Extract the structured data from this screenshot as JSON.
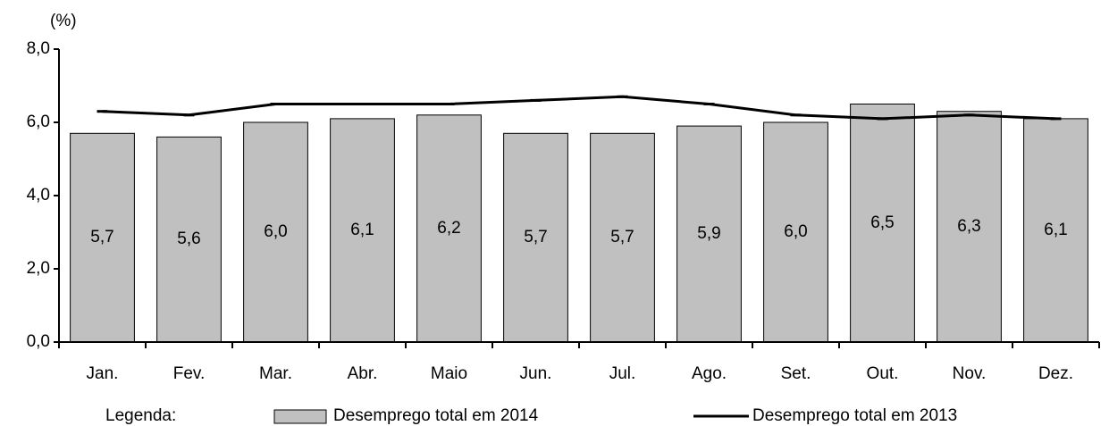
{
  "chart_data": {
    "type": "bar",
    "unit_label": "(%)",
    "legend_title": "Legenda:",
    "categories": [
      "Jan.",
      "Fev.",
      "Mar.",
      "Abr.",
      "Maio",
      "Jun.",
      "Jul.",
      "Ago.",
      "Set.",
      "Out.",
      "Nov.",
      "Dez."
    ],
    "series": [
      {
        "name": "Desemprego total em 2014",
        "type": "bar",
        "color": "#c0c0c0",
        "values": [
          5.7,
          5.6,
          6.0,
          6.1,
          6.2,
          5.7,
          5.7,
          5.9,
          6.0,
          6.5,
          6.3,
          6.1
        ],
        "value_labels": [
          "5,7",
          "5,6",
          "6,0",
          "6,1",
          "6,2",
          "5,7",
          "5,7",
          "5,9",
          "6,0",
          "6,5",
          "6,3",
          "6,1"
        ]
      },
      {
        "name": "Desemprego total em 2013",
        "type": "line",
        "color": "#000000",
        "values": [
          6.3,
          6.2,
          6.5,
          6.5,
          6.5,
          6.6,
          6.7,
          6.5,
          6.2,
          6.1,
          6.2,
          6.1
        ]
      }
    ],
    "ylim": [
      0,
      8
    ],
    "yticks": [
      {
        "value": 0,
        "label": "0,0"
      },
      {
        "value": 2,
        "label": "2,0"
      },
      {
        "value": 4,
        "label": "4,0"
      },
      {
        "value": 6,
        "label": "6,0"
      },
      {
        "value": 8,
        "label": "8,0"
      }
    ],
    "grid": false
  }
}
